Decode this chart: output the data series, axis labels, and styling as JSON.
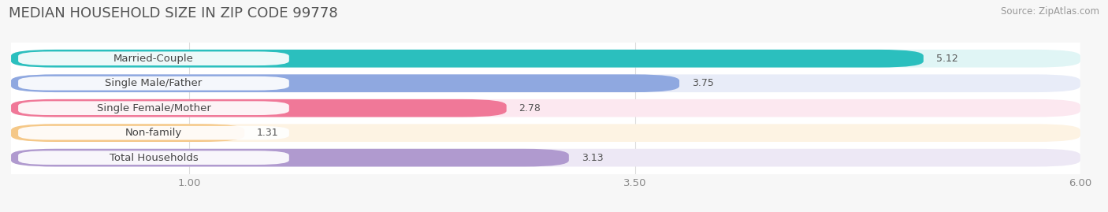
{
  "title": "MEDIAN HOUSEHOLD SIZE IN ZIP CODE 99778",
  "source": "Source: ZipAtlas.com",
  "categories": [
    "Married-Couple",
    "Single Male/Father",
    "Single Female/Mother",
    "Non-family",
    "Total Households"
  ],
  "values": [
    5.12,
    3.75,
    2.78,
    1.31,
    3.13
  ],
  "bar_colors": [
    "#2bbfbe",
    "#8fa8e0",
    "#f07898",
    "#f5c888",
    "#b09acf"
  ],
  "bar_bg_colors": [
    "#e0f5f5",
    "#e8ecf8",
    "#fce8f0",
    "#fdf3e3",
    "#ede8f5"
  ],
  "label_bg_color": "#ffffff",
  "xlim": [
    0,
    6.0
  ],
  "xticks": [
    1.0,
    3.5,
    6.0
  ],
  "title_fontsize": 13,
  "label_fontsize": 9.5,
  "value_fontsize": 9,
  "source_fontsize": 8.5,
  "chart_bg_color": "#ffffff",
  "fig_bg_color": "#f7f7f7"
}
